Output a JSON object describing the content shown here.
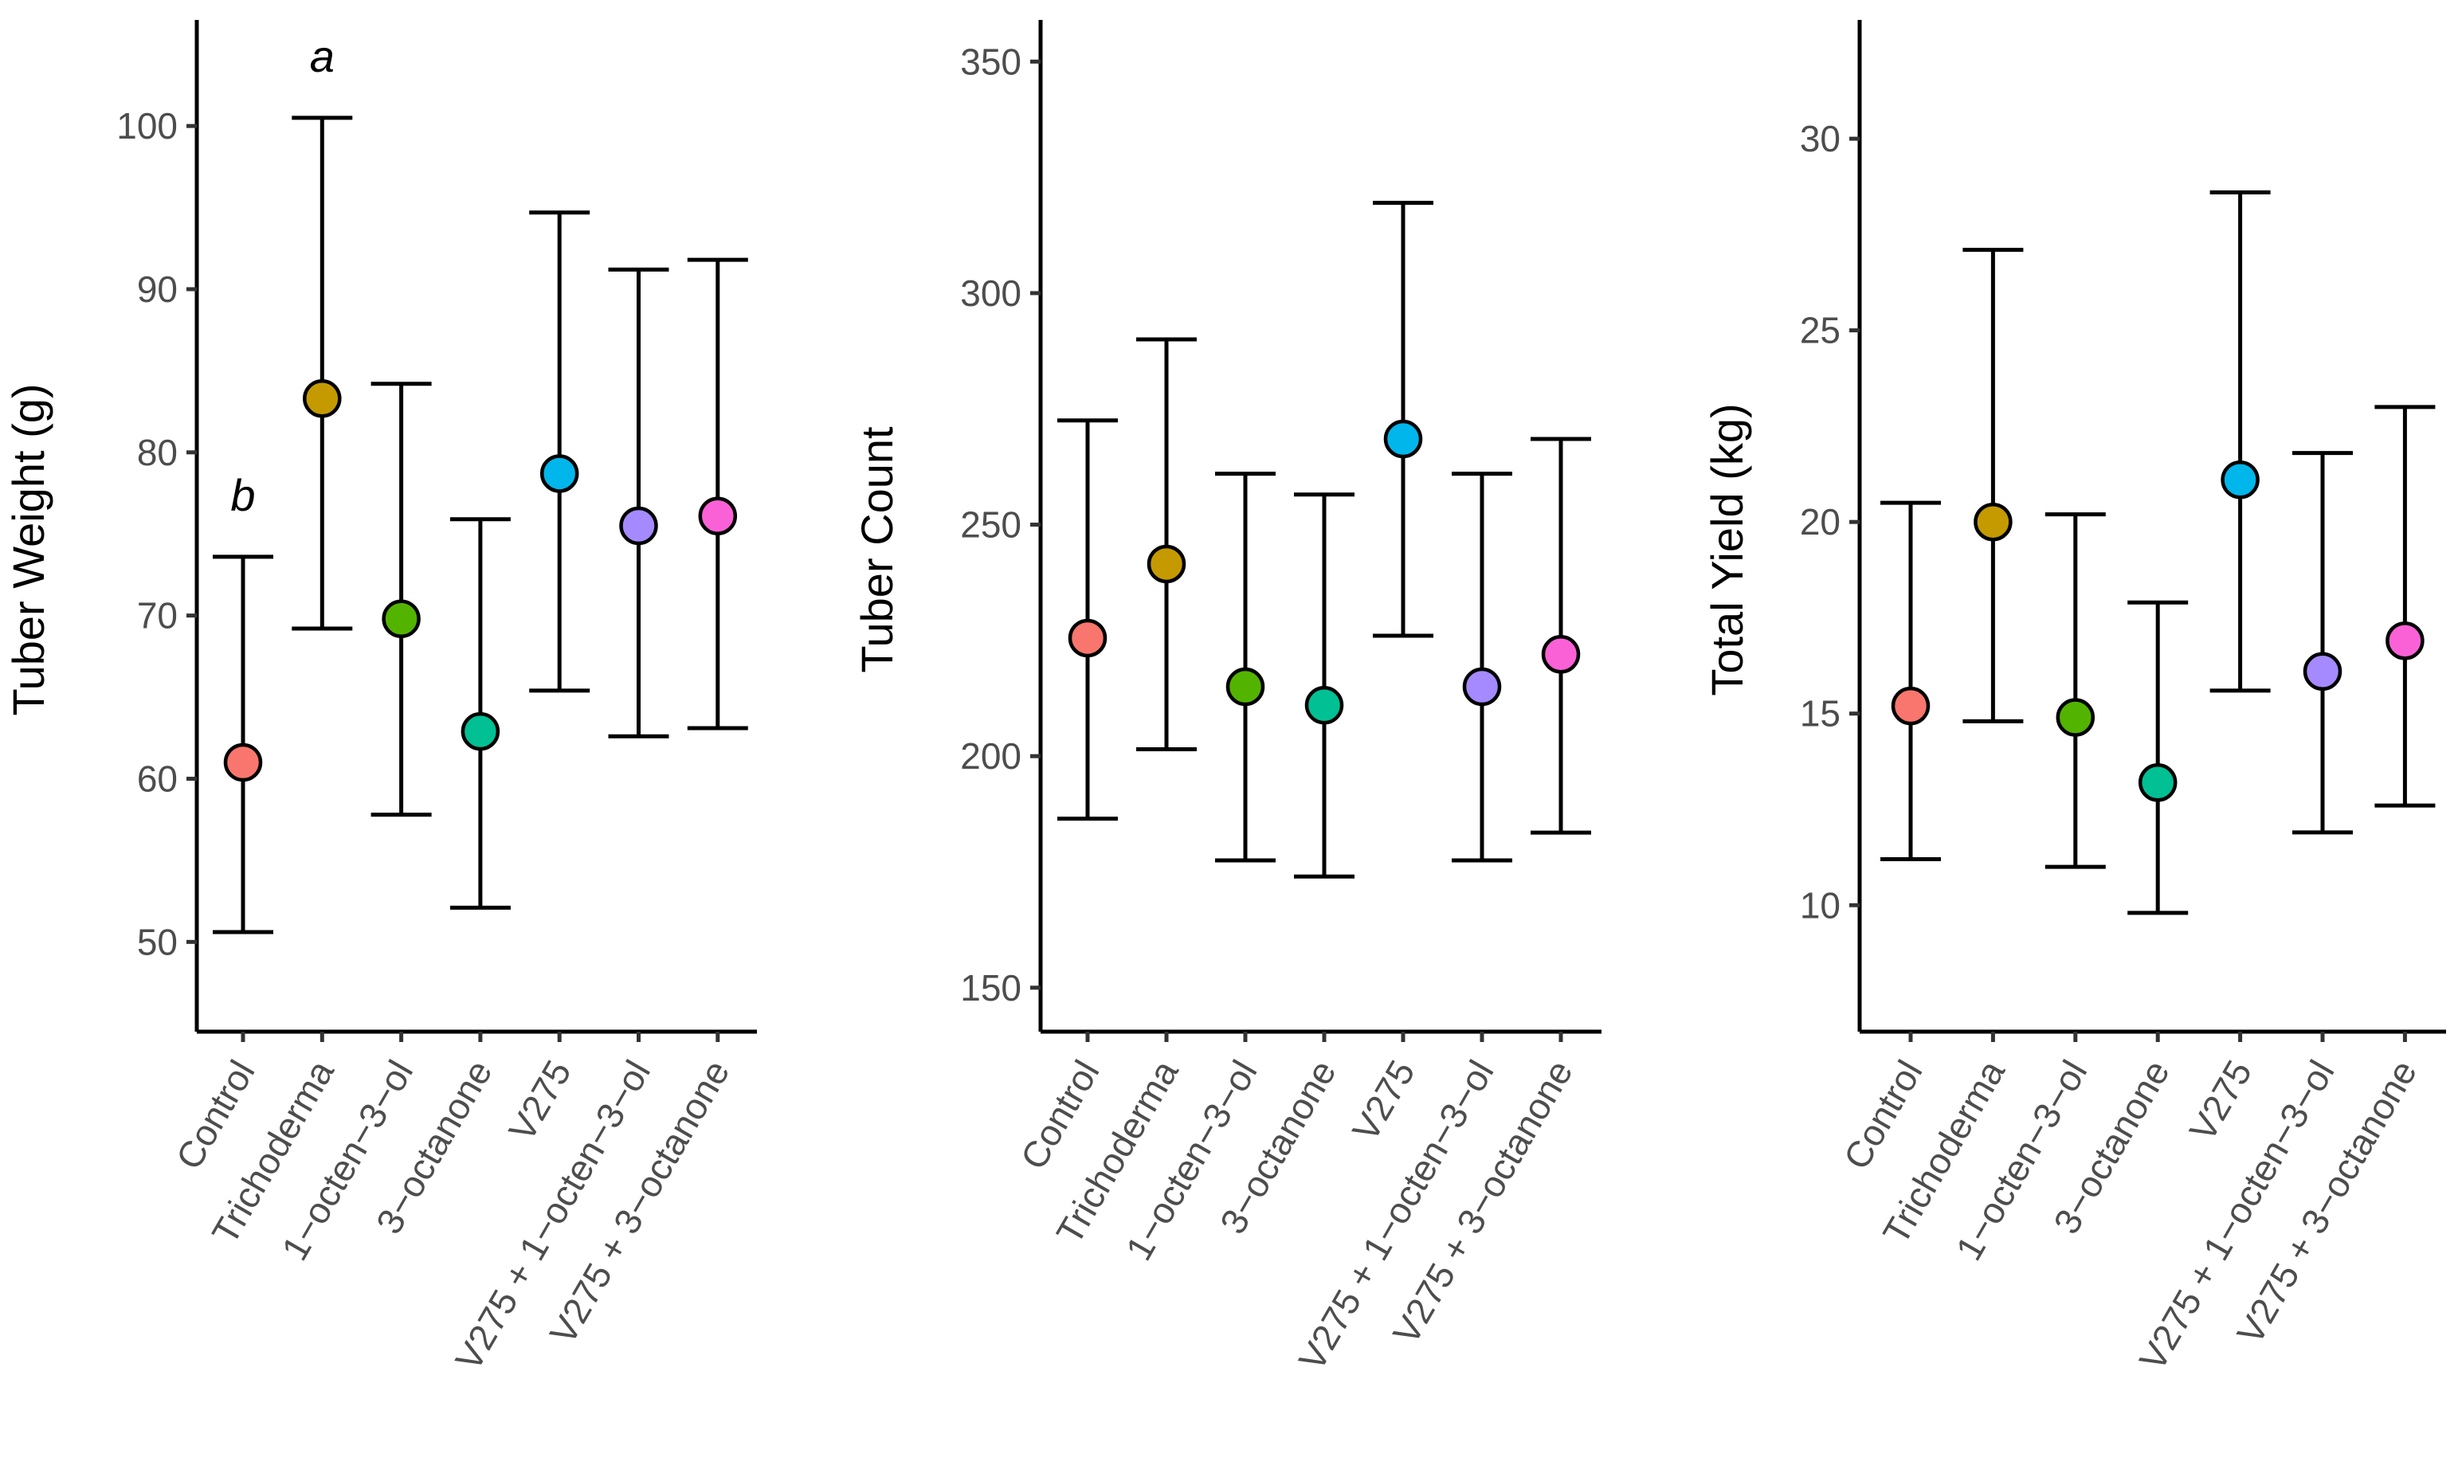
{
  "colors": {
    "Control": "#F8766D",
    "Trichoderma": "#C49A00",
    "1-octen-3-ol": "#53B400",
    "3-octanone": "#00C094",
    "V275": "#00B6EB",
    "V275 + 1-octen-3-ol": "#A58AFF",
    "V275 + 3-octanone": "#FB61D7"
  },
  "chart_data": [
    {
      "type": "scatter",
      "title": "",
      "xlabel": "",
      "ylabel": "Tuber Weight (g)",
      "ylim": [
        44.5,
        106.5
      ],
      "yticks": [
        50,
        60,
        70,
        80,
        90,
        100
      ],
      "categories": [
        "Control",
        "Trichoderma",
        "1−octen−3−ol",
        "3−octanone",
        "V275",
        "V275 + 1−octen−3−ol",
        "V275 + 3−octanone"
      ],
      "values": [
        61.0,
        83.3,
        69.8,
        62.9,
        78.7,
        75.5,
        76.1
      ],
      "lower": [
        50.6,
        69.2,
        57.8,
        52.1,
        65.4,
        62.6,
        63.1
      ],
      "upper": [
        73.6,
        100.5,
        84.2,
        75.9,
        94.7,
        91.2,
        91.8
      ],
      "annotations": [
        {
          "category": "Control",
          "text": "b"
        },
        {
          "category": "Trichoderma",
          "text": "a"
        }
      ]
    },
    {
      "type": "scatter",
      "title": "",
      "xlabel": "",
      "ylabel": "Tuber Count",
      "ylim": [
        140.5,
        359
      ],
      "yticks": [
        150,
        200,
        250,
        300,
        350
      ],
      "categories": [
        "Control",
        "Trichoderma",
        "1−octen−3−ol",
        "3−octanone",
        "V275",
        "V275 + 1−octen−3−ol",
        "V275 + 3−octanone"
      ],
      "values": [
        225.5,
        241.5,
        215.0,
        211.0,
        268.5,
        215.0,
        222.0
      ],
      "lower": [
        186.5,
        201.5,
        177.5,
        174.0,
        226.0,
        177.5,
        183.5
      ],
      "upper": [
        272.5,
        290.0,
        261.0,
        256.5,
        319.5,
        261.0,
        268.5
      ],
      "annotations": []
    },
    {
      "type": "scatter",
      "title": "",
      "xlabel": "",
      "ylabel": "Total Yield (kg)",
      "ylim": [
        6.7,
        33.1
      ],
      "yticks": [
        10,
        15,
        20,
        25,
        30
      ],
      "categories": [
        "Control",
        "Trichoderma",
        "1−octen−3−ol",
        "3−octanone",
        "V275",
        "V275 + 1−octen−3−ol",
        "V275 + 3−octanone"
      ],
      "values": [
        15.2,
        20.0,
        14.9,
        13.2,
        21.1,
        16.1,
        16.9
      ],
      "lower": [
        11.2,
        14.8,
        11.0,
        9.8,
        15.6,
        11.9,
        12.6
      ],
      "upper": [
        20.5,
        27.1,
        20.2,
        17.9,
        28.6,
        21.8,
        23.0
      ],
      "annotations": []
    }
  ]
}
